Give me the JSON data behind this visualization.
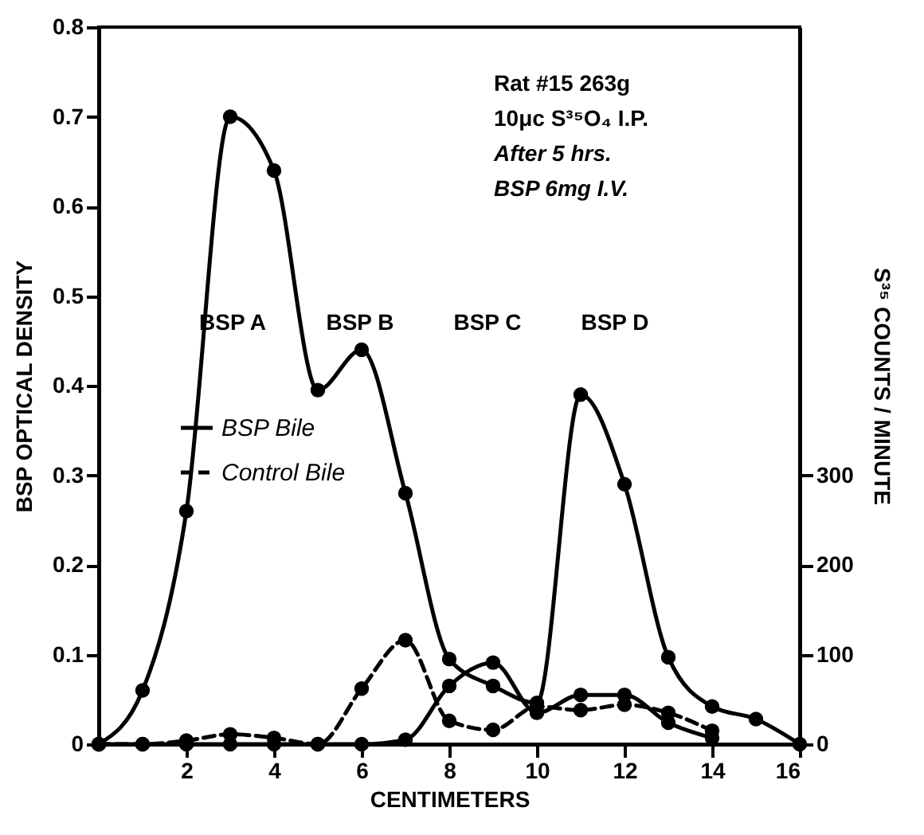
{
  "chart_data": {
    "type": "line",
    "xlabel": "CENTIMETERS",
    "ylabel": "BSP  OPTICAL DENSITY",
    "y2label": "S³⁵ COUNTS / MINUTE",
    "xlim": [
      0,
      16
    ],
    "xticks": [
      2,
      4,
      6,
      8,
      10,
      12,
      14,
      16
    ],
    "ylim": [
      0,
      0.8
    ],
    "yticks": [
      0,
      0.1,
      0.2,
      0.3,
      0.4,
      0.5,
      0.6,
      0.7,
      0.8
    ],
    "y2lim": [
      0,
      800
    ],
    "y2ticks": [
      0,
      100,
      200,
      300
    ],
    "grid": false,
    "legend": "left",
    "marker": "circle",
    "annotations": [
      "Rat #15  263g",
      "10μc S³⁵O₄ I.P.",
      "After 5 hrs.",
      "BSP 6mg I.V.",
      "BSP A",
      "BSP B",
      "BSP C",
      "BSP D"
    ],
    "series": [
      {
        "color": "#000000",
        "line_style": "solid",
        "x": [
          0,
          1,
          2,
          3,
          4,
          5,
          6,
          7,
          8,
          9,
          10,
          11,
          12,
          13,
          14,
          15,
          16
        ],
        "values": [
          0,
          0.06,
          0.26,
          0.7,
          0.64,
          0.395,
          0.44,
          0.28,
          0.095,
          0.065,
          0.046,
          0.39,
          0.29,
          0.097,
          0.042,
          0.028,
          0
        ]
      },
      {
        "name": "BSP Bile",
        "color": "#000000",
        "line_style": "solid",
        "axis": "y2",
        "x": [
          0,
          1,
          2,
          3,
          4,
          5,
          6,
          7,
          8,
          9,
          10,
          11,
          12,
          13,
          14
        ],
        "values": [
          0,
          0,
          0,
          0,
          0,
          0,
          0,
          5,
          65,
          91,
          35,
          55,
          55,
          24,
          7
        ]
      },
      {
        "name": "Control Bile",
        "color": "#000000",
        "line_style": "dashed",
        "axis": "y2",
        "x": [
          0,
          1,
          2,
          3,
          4,
          5,
          6,
          7,
          8,
          9,
          10,
          11,
          12,
          13,
          14
        ],
        "values": [
          0,
          0,
          4,
          11,
          7,
          0,
          62,
          116,
          26,
          16,
          42,
          38,
          44,
          35,
          15
        ]
      }
    ]
  }
}
